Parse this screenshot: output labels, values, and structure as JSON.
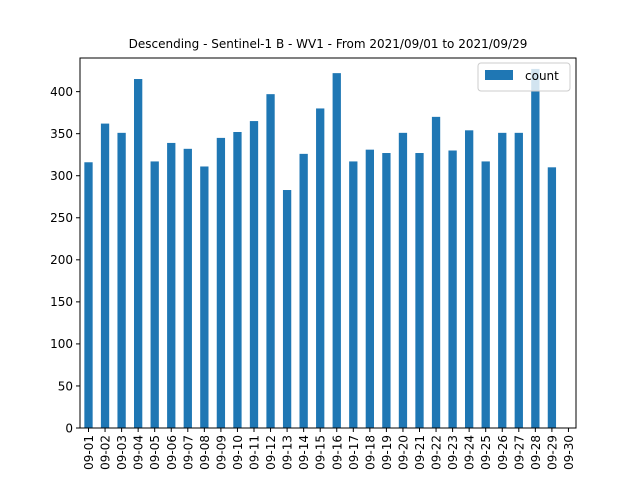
{
  "chart_data": {
    "type": "bar",
    "title": "Descending - Sentinel-1 B - WV1 - From 2021/09/01 to 2021/09/29",
    "xlabel": "",
    "ylabel": "",
    "ylim": [
      0,
      440
    ],
    "yticks": [
      0,
      50,
      100,
      150,
      200,
      250,
      300,
      350,
      400
    ],
    "grid": false,
    "legend_position": "top-right",
    "categories": [
      "09-01",
      "09-02",
      "09-03",
      "09-04",
      "09-05",
      "09-06",
      "09-07",
      "09-08",
      "09-09",
      "09-10",
      "09-11",
      "09-12",
      "09-13",
      "09-14",
      "09-15",
      "09-16",
      "09-17",
      "09-18",
      "09-19",
      "09-20",
      "09-21",
      "09-22",
      "09-23",
      "09-24",
      "09-25",
      "09-26",
      "09-27",
      "09-28",
      "09-29",
      "09-30"
    ],
    "series": [
      {
        "name": "count",
        "color": "#1f77b4",
        "values": [
          316,
          362,
          351,
          415,
          317,
          339,
          332,
          311,
          345,
          352,
          365,
          397,
          283,
          326,
          380,
          422,
          317,
          331,
          327,
          351,
          327,
          370,
          330,
          354,
          317,
          351,
          351,
          427,
          310,
          0
        ]
      }
    ]
  }
}
